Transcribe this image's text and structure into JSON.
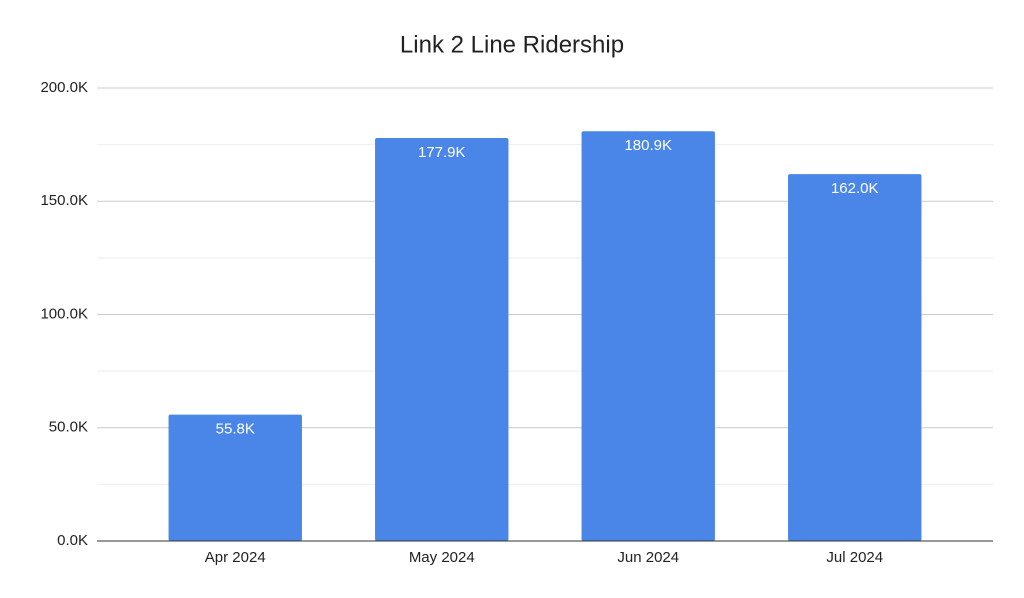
{
  "chart_data": {
    "type": "bar",
    "title": "Link 2 Line Ridership",
    "categories": [
      "Apr 2024",
      "May 2024",
      "Jun 2024",
      "Jul 2024"
    ],
    "values": [
      55800,
      177900,
      180900,
      162000
    ],
    "value_labels": [
      "55.8K",
      "177.9K",
      "180.9K",
      "162.0K"
    ],
    "color": "#4a86e8",
    "ylim": [
      0,
      200000
    ],
    "yticks": [
      {
        "value": 0,
        "label": "0.0K"
      },
      {
        "value": 50000,
        "label": "50.0K"
      },
      {
        "value": 100000,
        "label": "100.0K"
      },
      {
        "value": 150000,
        "label": "150.0K"
      },
      {
        "value": 200000,
        "label": "200.0K"
      }
    ],
    "minor_yticks": [
      25000,
      75000,
      125000,
      175000
    ],
    "grid": true
  }
}
